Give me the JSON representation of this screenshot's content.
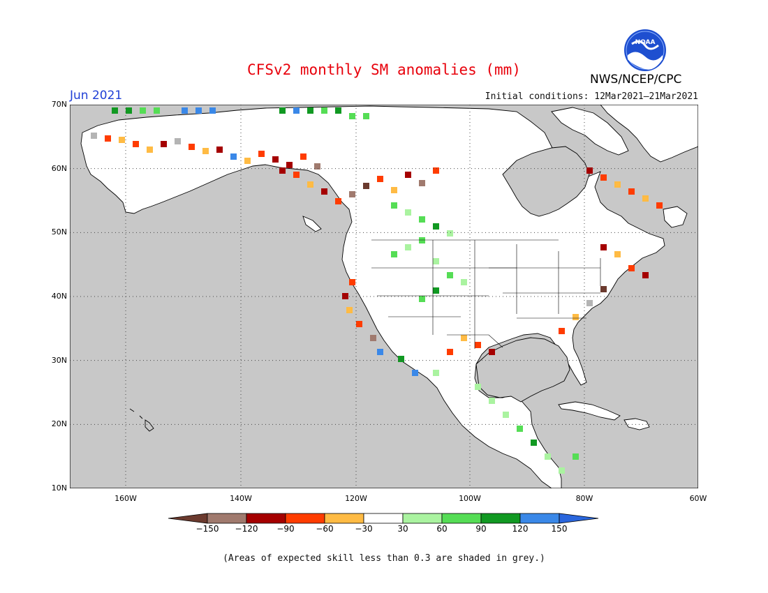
{
  "title": "CFSv2 monthly SM anomalies (mm)",
  "period": "Jun 2021",
  "initial_conditions": "Initial conditions: 12Mar2021–21Mar2021",
  "organization": "NWS/NCEP/CPC",
  "logo_text": "NOAA",
  "footnote": "(Areas of expected skill less than 0.3 are shaded in grey.)",
  "map": {
    "lon_range": [
      -172,
      -60
    ],
    "lat_range": [
      10,
      70
    ],
    "lat_labels": [
      "70N",
      "60N",
      "50N",
      "40N",
      "30N",
      "20N",
      "10N"
    ],
    "lon_labels": [
      "160W",
      "140W",
      "120W",
      "100W",
      "80W",
      "60W"
    ],
    "ocean_color": "#c8c8c8",
    "land_color": "#ffffff"
  },
  "colorbar": {
    "ticks": [
      "−150",
      "−120",
      "−90",
      "−60",
      "−30",
      "30",
      "60",
      "90",
      "120",
      "150"
    ],
    "colors": [
      "#6b3a2e",
      "#a07a6e",
      "#a50000",
      "#ff3c00",
      "#ffbb44",
      "#ffffff",
      "#aaf3a0",
      "#55dd55",
      "#119922",
      "#3a88e8",
      "#2a66dd"
    ]
  }
}
